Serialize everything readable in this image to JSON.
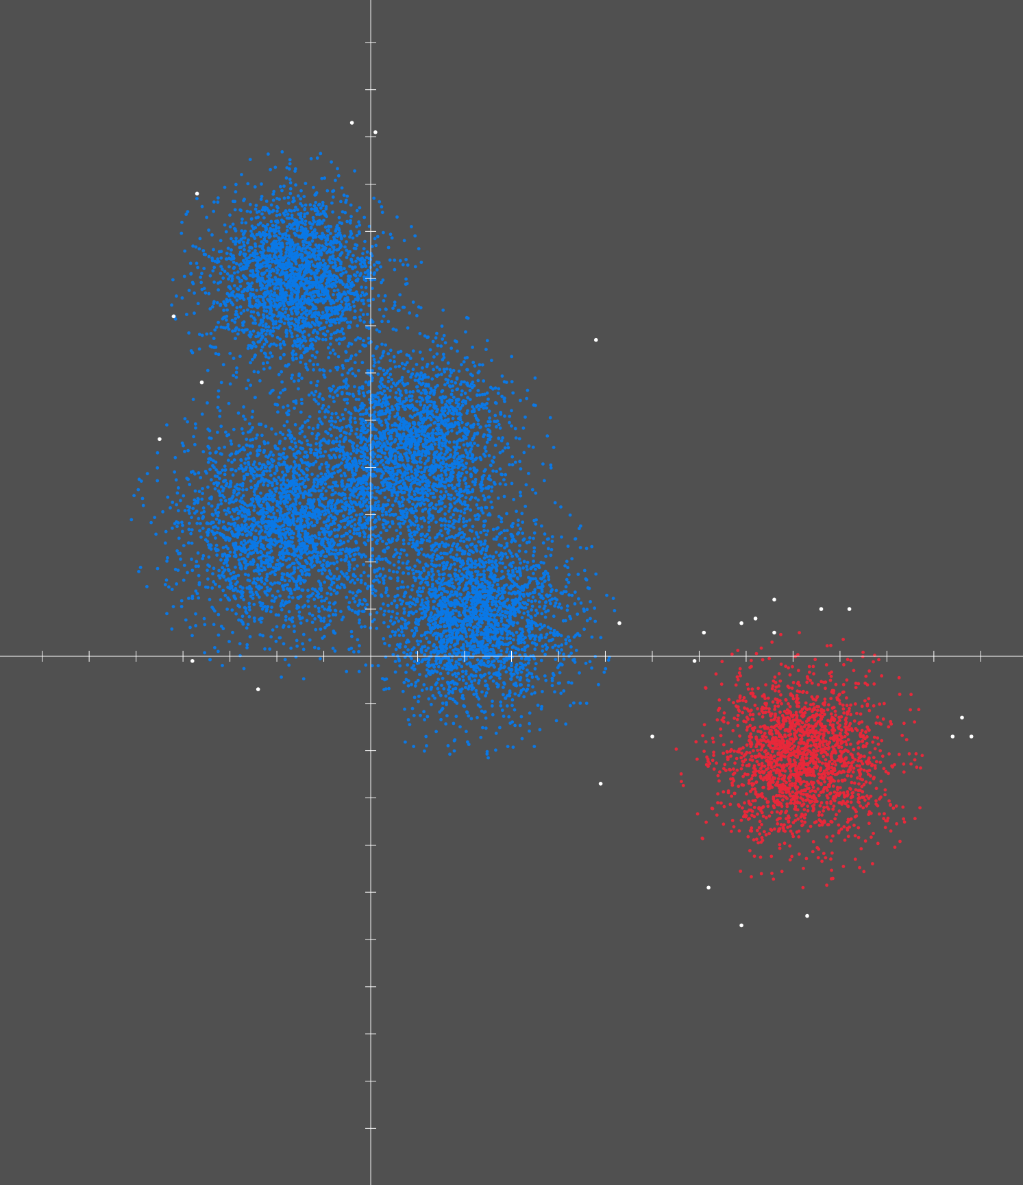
{
  "colors": {
    "background": "#505050",
    "axis": "#ffffff",
    "cluster_blue": "#0a78e6",
    "cluster_red": "#e8283a",
    "noise": "#ffffff"
  },
  "chart_data": {
    "type": "scatter",
    "title": "",
    "xlabel": "",
    "ylabel": "",
    "xlim": [
      -7.9,
      13.9
    ],
    "ylim": [
      -11.2,
      13.9
    ],
    "grid": false,
    "legend": "none",
    "x_ticks": [
      -7,
      -6,
      -5,
      -4,
      -3,
      -2,
      -1,
      1,
      2,
      3,
      4,
      5,
      6,
      7,
      8,
      9,
      10,
      11,
      12,
      13
    ],
    "y_ticks": [
      -10,
      -9,
      -8,
      -7,
      -6,
      -5,
      -4,
      -3,
      -2,
      -1,
      1,
      2,
      3,
      4,
      5,
      6,
      7,
      8,
      9,
      10,
      11,
      12,
      13
    ],
    "clusters": [
      {
        "color_key": "cluster_blue",
        "center": [
          -1.6,
          8.0
        ],
        "std": [
          0.9,
          0.9
        ],
        "count": 2300
      },
      {
        "color_key": "cluster_blue",
        "center": [
          -1.8,
          2.8
        ],
        "std": [
          1.1,
          1.1
        ],
        "count": 2600
      },
      {
        "color_key": "cluster_blue",
        "center": [
          0.9,
          4.4
        ],
        "std": [
          1.0,
          1.0
        ],
        "count": 2300
      },
      {
        "color_key": "cluster_blue",
        "center": [
          2.2,
          0.8
        ],
        "std": [
          1.0,
          1.0
        ],
        "count": 2400
      },
      {
        "color_key": "cluster_red",
        "center": [
          9.2,
          -2.2
        ],
        "std": [
          0.9,
          0.9
        ],
        "count": 1900
      }
    ],
    "noise_points": [
      [
        -0.4,
        11.3
      ],
      [
        0.1,
        11.1
      ],
      [
        -3.7,
        9.8
      ],
      [
        -4.2,
        7.2
      ],
      [
        4.8,
        6.7
      ],
      [
        -3.6,
        5.8
      ],
      [
        -4.5,
        4.6
      ],
      [
        -3.8,
        -0.1
      ],
      [
        -2.4,
        -0.7
      ],
      [
        5.3,
        0.7
      ],
      [
        7.1,
        0.5
      ],
      [
        6.9,
        -0.1
      ],
      [
        7.9,
        0.7
      ],
      [
        8.2,
        0.8
      ],
      [
        8.6,
        1.2
      ],
      [
        8.6,
        0.5
      ],
      [
        9.6,
        1.0
      ],
      [
        10.2,
        1.0
      ],
      [
        6.0,
        -1.7
      ],
      [
        4.9,
        -2.7
      ],
      [
        12.6,
        -1.3
      ],
      [
        12.4,
        -1.7
      ],
      [
        12.8,
        -1.7
      ],
      [
        7.2,
        -4.9
      ],
      [
        7.9,
        -5.7
      ],
      [
        9.3,
        -5.5
      ]
    ]
  }
}
